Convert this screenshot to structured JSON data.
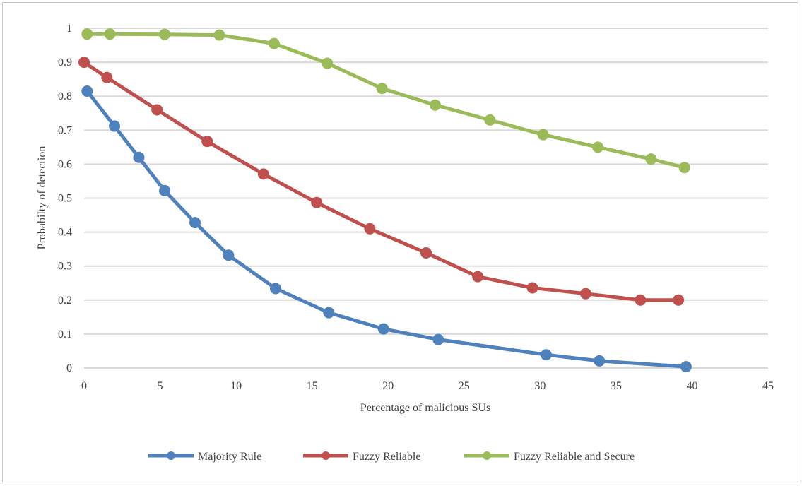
{
  "chart_data": {
    "type": "line",
    "title": "",
    "xlabel": "Percentage of malicious SUs",
    "ylabel": "Probabilty of detection",
    "xlim": [
      0,
      45
    ],
    "ylim": [
      0,
      1
    ],
    "x_ticks": [
      "0",
      "5",
      "10",
      "15",
      "20",
      "25",
      "30",
      "35",
      "40",
      "45"
    ],
    "y_ticks": [
      "0",
      "0.1",
      "0.2",
      "0.3",
      "0.4",
      "0.5",
      "0.6",
      "0.7",
      "0.8",
      "0.9",
      "1"
    ],
    "grid": "horizontal",
    "legend_position": "bottom",
    "series": [
      {
        "name": "Majority Rule",
        "color": "#4f81bd",
        "points": [
          [
            0.2,
            0.815
          ],
          [
            2.0,
            0.712
          ],
          [
            3.6,
            0.62
          ],
          [
            5.3,
            0.522
          ],
          [
            7.3,
            0.428
          ],
          [
            9.5,
            0.332
          ],
          [
            12.6,
            0.234
          ],
          [
            16.1,
            0.163
          ],
          [
            19.7,
            0.115
          ],
          [
            23.3,
            0.084
          ],
          [
            30.4,
            0.039
          ],
          [
            33.9,
            0.021
          ],
          [
            39.6,
            0.004
          ]
        ]
      },
      {
        "name": "Fuzzy Reliable",
        "color": "#c0504d",
        "points": [
          [
            0.0,
            0.9
          ],
          [
            1.5,
            0.855
          ],
          [
            4.8,
            0.76
          ],
          [
            8.1,
            0.667
          ],
          [
            11.8,
            0.571
          ],
          [
            15.3,
            0.487
          ],
          [
            18.8,
            0.41
          ],
          [
            22.5,
            0.339
          ],
          [
            25.9,
            0.269
          ],
          [
            29.5,
            0.236
          ],
          [
            33.0,
            0.219
          ],
          [
            36.6,
            0.2
          ],
          [
            39.1,
            0.2
          ]
        ]
      },
      {
        "name": "Fuzzy Reliable and Secure",
        "color": "#9bbb59",
        "points": [
          [
            0.2,
            0.983
          ],
          [
            1.7,
            0.983
          ],
          [
            5.3,
            0.982
          ],
          [
            8.9,
            0.98
          ],
          [
            12.5,
            0.955
          ],
          [
            16.0,
            0.897
          ],
          [
            19.6,
            0.823
          ],
          [
            23.1,
            0.774
          ],
          [
            26.7,
            0.73
          ],
          [
            30.2,
            0.687
          ],
          [
            33.8,
            0.65
          ],
          [
            37.3,
            0.615
          ],
          [
            39.5,
            0.59
          ]
        ]
      }
    ]
  }
}
